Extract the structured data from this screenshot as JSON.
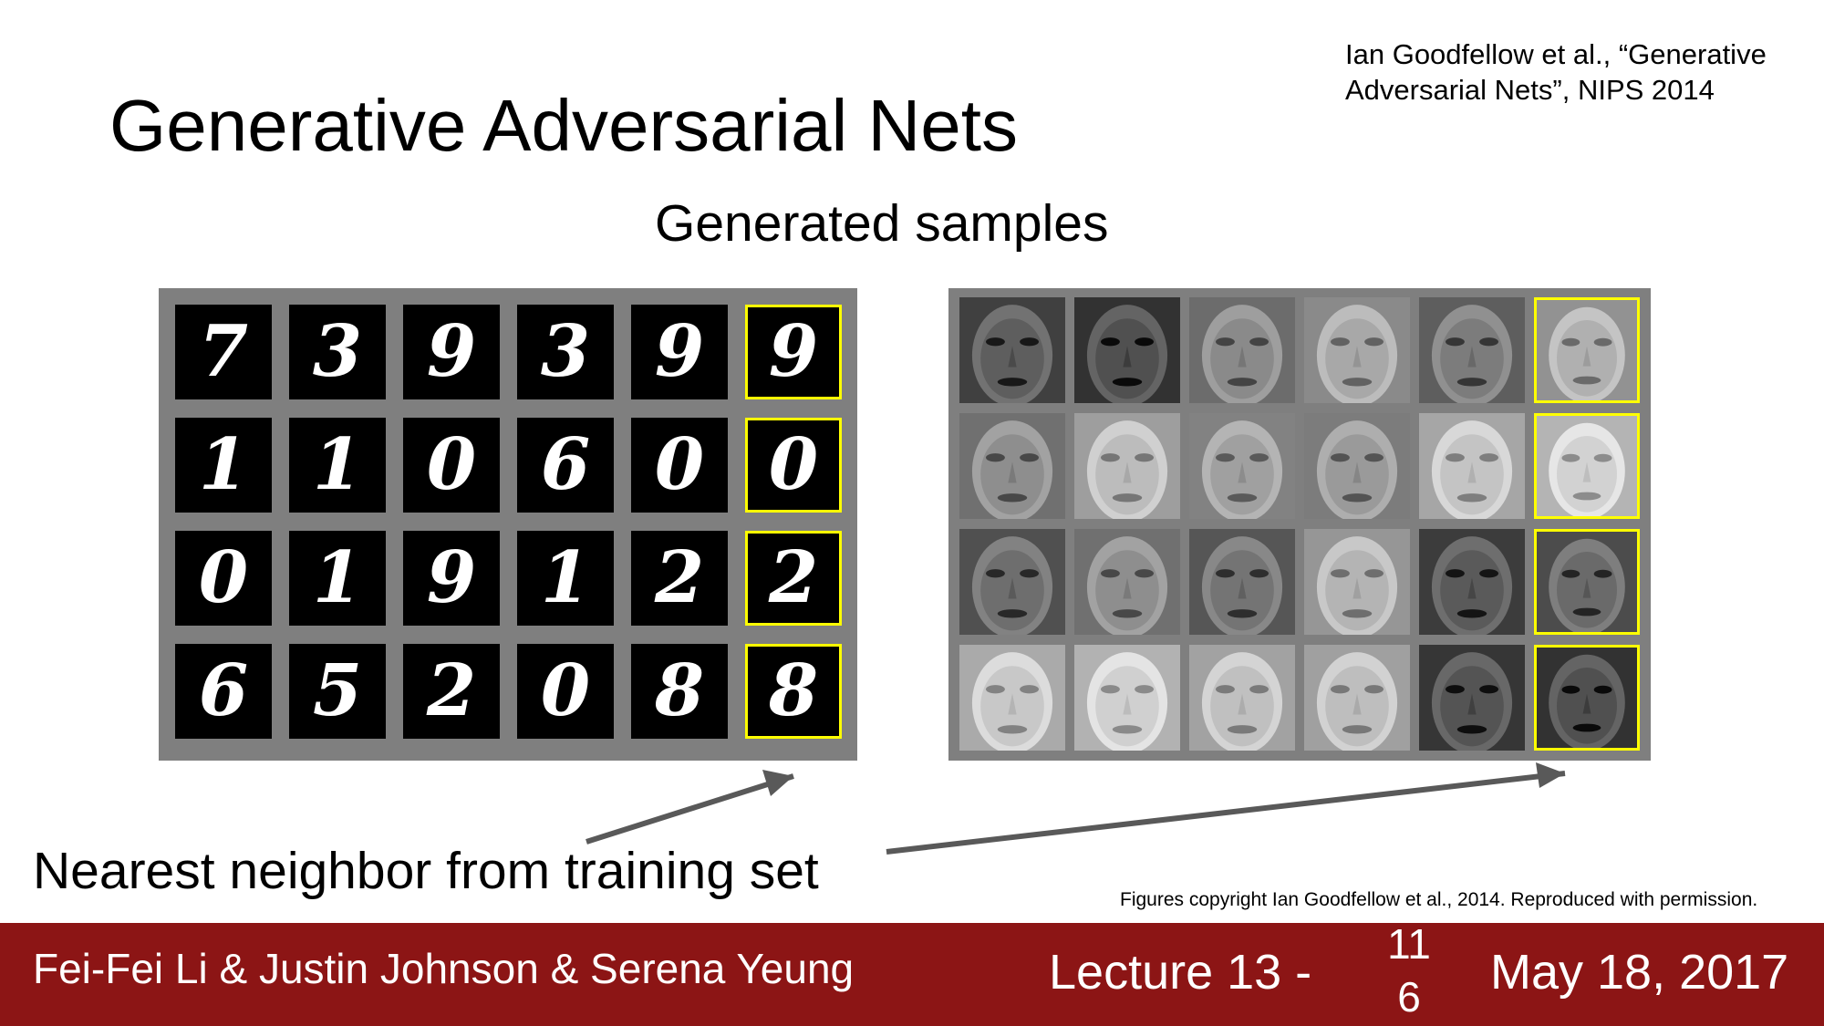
{
  "slide": {
    "title": "Generative Adversarial Nets",
    "citation_line1": "Ian Goodfellow et al., “Generative",
    "citation_line2": "Adversarial Nets”, NIPS 2014",
    "subtitle": "Generated samples",
    "nearest_neighbor_label": "Nearest neighbor from training set",
    "copyright": "Figures copyright Ian Goodfellow et al., 2014. Reproduced with permission."
  },
  "mnist_grid": {
    "rows": [
      [
        "7",
        "3",
        "9",
        "3",
        "9",
        "9"
      ],
      [
        "1",
        "1",
        "0",
        "6",
        "0",
        "0"
      ],
      [
        "0",
        "1",
        "9",
        "1",
        "2",
        "2"
      ],
      [
        "6",
        "5",
        "2",
        "0",
        "8",
        "8"
      ]
    ],
    "highlight_color": "#ffff00",
    "highlight_column": 5
  },
  "faces_grid": {
    "rows": [
      [
        "#5e5e5e",
        "#505050",
        "#8a8a8a",
        "#a8a8a8",
        "#7c7c7c",
        "#b0b0b0"
      ],
      [
        "#8e8e8e",
        "#bcbcbc",
        "#a0a0a0",
        "#9a9a9a",
        "#c4c4c4",
        "#d2d2d2"
      ],
      [
        "#6e6e6e",
        "#8e8e8e",
        "#747474",
        "#b4b4b4",
        "#5a5a5a",
        "#6a6a6a"
      ],
      [
        "#c8c8c8",
        "#d0d0d0",
        "#c0c0c0",
        "#bebebe",
        "#545454",
        "#505050"
      ]
    ],
    "highlight_color": "#ffff00",
    "highlight_column": 5
  },
  "footer": {
    "authors": "Fei-Fei Li & Justin Johnson & Serena Yeung",
    "lecture": "Lecture 13 -",
    "page_line1": "11",
    "page_line2": "6",
    "date": "May 18, 2017",
    "background_color": "#8c1515"
  }
}
